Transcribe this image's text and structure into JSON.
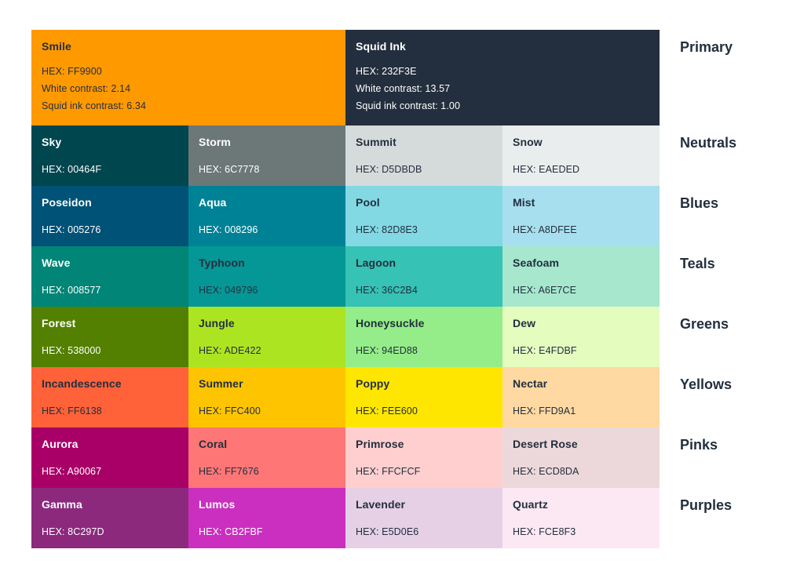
{
  "page": {
    "background": "#FFFFFF",
    "label_color": "#232F3E"
  },
  "text_colors": {
    "dark": "#232F3E",
    "light": "#FFFFFF"
  },
  "rows": [
    {
      "category": "Primary",
      "cells": [
        {
          "name": "Smile",
          "hex": "#FF9900",
          "bg": "#FF9900",
          "fg": "#232F3E",
          "hex_label": "HEX: FF9900",
          "white_contrast_label": "White contrast: 2.14",
          "squid_contrast_label": "Squid ink contrast: 6.34"
        },
        {
          "name": "Squid Ink",
          "hex": "#232F3E",
          "bg": "#232F3E",
          "fg": "#FFFFFF",
          "hex_label": "HEX: 232F3E",
          "white_contrast_label": "White contrast: 13.57",
          "squid_contrast_label": "Squid ink contrast: 1.00"
        }
      ]
    },
    {
      "category": "Neutrals",
      "cells": [
        {
          "name": "Sky",
          "hex": "#00464F",
          "bg": "#00464F",
          "fg": "#FFFFFF",
          "hex_label": "HEX: 00464F"
        },
        {
          "name": "Storm",
          "hex": "#6C7778",
          "bg": "#6C7778",
          "fg": "#FFFFFF",
          "hex_label": "HEX: 6C7778"
        },
        {
          "name": "Summit",
          "hex": "#D5DBDB",
          "bg": "#D5DBDB",
          "fg": "#232F3E",
          "hex_label": "HEX: D5DBDB"
        },
        {
          "name": "Snow",
          "hex": "#EAEDED",
          "bg": "#EAEDED",
          "fg": "#232F3E",
          "hex_label": "HEX: EAEDED"
        }
      ]
    },
    {
      "category": "Blues",
      "cells": [
        {
          "name": "Poseidon",
          "hex": "#005276",
          "bg": "#005276",
          "fg": "#FFFFFF",
          "hex_label": "HEX: 005276"
        },
        {
          "name": "Aqua",
          "hex": "#008296",
          "bg": "#008296",
          "fg": "#FFFFFF",
          "hex_label": "HEX: 008296"
        },
        {
          "name": "Pool",
          "hex": "#82D8E3",
          "bg": "#82D8E3",
          "fg": "#232F3E",
          "hex_label": "HEX: 82D8E3"
        },
        {
          "name": "Mist",
          "hex": "#A8DFEE",
          "bg": "#A8DFEE",
          "fg": "#232F3E",
          "hex_label": "HEX: A8DFEE"
        }
      ]
    },
    {
      "category": "Teals",
      "cells": [
        {
          "name": "Wave",
          "hex": "#008577",
          "bg": "#008577",
          "fg": "#FFFFFF",
          "hex_label": "HEX: 008577"
        },
        {
          "name": "Typhoon",
          "hex": "#049796",
          "bg": "#049796",
          "fg": "#232F3E",
          "hex_label": "HEX: 049796"
        },
        {
          "name": "Lagoon",
          "hex": "#36C2B4",
          "bg": "#36C2B4",
          "fg": "#232F3E",
          "hex_label": "HEX: 36C2B4"
        },
        {
          "name": "Seafoam",
          "hex": "#A6E7CE",
          "bg": "#A6E7CE",
          "fg": "#232F3E",
          "hex_label": "HEX: A6E7CE"
        }
      ]
    },
    {
      "category": "Greens",
      "cells": [
        {
          "name": "Forest",
          "hex": "#538000",
          "bg": "#538000",
          "fg": "#FFFFFF",
          "hex_label": "HEX: 538000"
        },
        {
          "name": "Jungle",
          "hex": "#ADE422",
          "bg": "#ADE422",
          "fg": "#232F3E",
          "hex_label": "HEX: ADE422"
        },
        {
          "name": "Honeysuckle",
          "hex": "#94ED88",
          "bg": "#94ED88",
          "fg": "#232F3E",
          "hex_label": "HEX: 94ED88"
        },
        {
          "name": "Dew",
          "hex": "#E4FDBF",
          "bg": "#E4FDBF",
          "fg": "#232F3E",
          "hex_label": "HEX: E4FDBF"
        }
      ]
    },
    {
      "category": "Yellows",
      "cells": [
        {
          "name": "Incandescence",
          "hex": "#FF6138",
          "bg": "#FF6138",
          "fg": "#232F3E",
          "hex_label": "HEX: FF6138"
        },
        {
          "name": "Summer",
          "hex": "#FFC400",
          "bg": "#FFC400",
          "fg": "#232F3E",
          "hex_label": "HEX: FFC400"
        },
        {
          "name": "Poppy",
          "hex": "#FEE600",
          "bg": "#FEE600",
          "fg": "#232F3E",
          "hex_label": "HEX: FEE600"
        },
        {
          "name": "Nectar",
          "hex": "#FFD9A1",
          "bg": "#FFD9A1",
          "fg": "#232F3E",
          "hex_label": "HEX: FFD9A1"
        }
      ]
    },
    {
      "category": "Pinks",
      "cells": [
        {
          "name": "Aurora",
          "hex": "#A90067",
          "bg": "#A90067",
          "fg": "#FFFFFF",
          "hex_label": "HEX: A90067"
        },
        {
          "name": "Coral",
          "hex": "#FF7676",
          "bg": "#FF7676",
          "fg": "#232F3E",
          "hex_label": "HEX: FF7676"
        },
        {
          "name": "Primrose",
          "hex": "#FFCFCF",
          "bg": "#FFCFCF",
          "fg": "#232F3E",
          "hex_label": "HEX: FFCFCF"
        },
        {
          "name": "Desert Rose",
          "hex": "#ECD8DA",
          "bg": "#ECD8DA",
          "fg": "#232F3E",
          "hex_label": "HEX: ECD8DA"
        }
      ]
    },
    {
      "category": "Purples",
      "cells": [
        {
          "name": "Gamma",
          "hex": "#8C297D",
          "bg": "#8C297D",
          "fg": "#FFFFFF",
          "hex_label": "HEX: 8C297D"
        },
        {
          "name": "Lumos",
          "hex": "#CB2FBF",
          "bg": "#CB2FBF",
          "fg": "#FFFFFF",
          "hex_label": "HEX: CB2FBF"
        },
        {
          "name": "Lavender",
          "hex": "#E5D0E6",
          "bg": "#E5D0E6",
          "fg": "#232F3E",
          "hex_label": "HEX: E5D0E6"
        },
        {
          "name": "Quartz",
          "hex": "#FCE8F3",
          "bg": "#FCE8F3",
          "fg": "#232F3E",
          "hex_label": "HEX: FCE8F3"
        }
      ]
    }
  ]
}
